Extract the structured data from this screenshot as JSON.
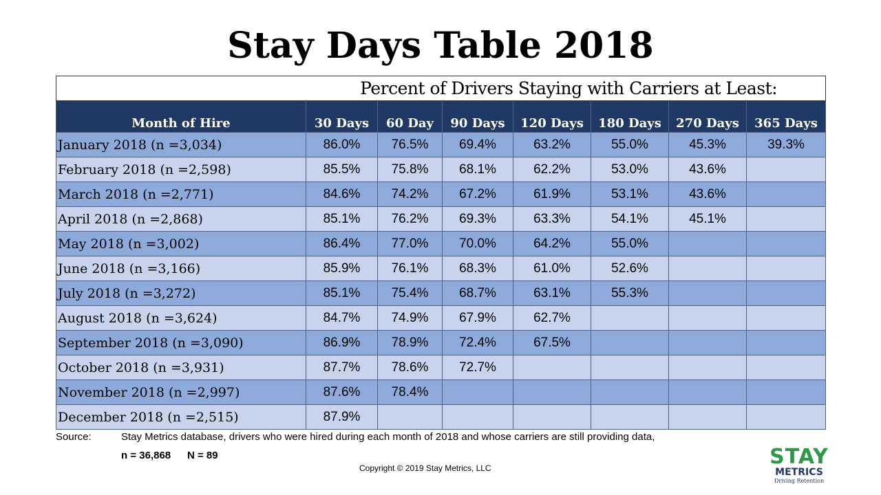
{
  "title": "Stay Days Table 2018",
  "table": {
    "superheader": "Percent of Drivers Staying with Carriers at Least:",
    "headers": [
      "Month of Hire",
      "30 Days",
      "60 Day",
      "90 Days",
      "120 Days",
      "180 Days",
      "270 Days",
      "365 Days"
    ],
    "rows": [
      [
        "January 2018 (n =3,034)",
        "86.0%",
        "76.5%",
        "69.4%",
        "63.2%",
        "55.0%",
        "45.3%",
        "39.3%"
      ],
      [
        "February 2018 (n =2,598)",
        "85.5%",
        "75.8%",
        "68.1%",
        "62.2%",
        "53.0%",
        "43.6%",
        null
      ],
      [
        "March 2018 (n =2,771)",
        "84.6%",
        "74.2%",
        "67.2%",
        "61.9%",
        "53.1%",
        "43.6%",
        null
      ],
      [
        "April 2018 (n =2,868)",
        "85.1%",
        "76.2%",
        "69.3%",
        "63.3%",
        "54.1%",
        "45.1%",
        null
      ],
      [
        "May 2018 (n =3,002)",
        "86.4%",
        "77.0%",
        "70.0%",
        "64.2%",
        "55.0%",
        null,
        null
      ],
      [
        "June 2018 (n =3,166)",
        "85.9%",
        "76.1%",
        "68.3%",
        "61.0%",
        "52.6%",
        null,
        null
      ],
      [
        "July 2018 (n =3,272)",
        "85.1%",
        "75.4%",
        "68.7%",
        "63.1%",
        "55.3%",
        null,
        null
      ],
      [
        "August 2018 (n =3,624)",
        "84.7%",
        "74.9%",
        "67.9%",
        "62.7%",
        null,
        null,
        null
      ],
      [
        "September 2018 (n =3,090)",
        "86.9%",
        "78.9%",
        "72.4%",
        "67.5%",
        null,
        null,
        null
      ],
      [
        "October 2018 (n =3,931)",
        "87.7%",
        "78.6%",
        "72.7%",
        null,
        null,
        null,
        null
      ],
      [
        "November 2018 (n =2,997)",
        "87.6%",
        "78.4%",
        null,
        null,
        null,
        null,
        null
      ],
      [
        "December 2018 (n =2,515)",
        "87.9%",
        null,
        null,
        null,
        null,
        null,
        null
      ]
    ]
  },
  "footer": {
    "source_label": "Source:",
    "source_text": "Stay Metrics database, drivers who were hired during each month of 2018 and whose carriers are still providing data,",
    "n_total": "n = 36,868",
    "n_carriers": "N = 89",
    "copyright": "Copyright © 2019 Stay Metrics, LLC"
  },
  "logo": {
    "top": "STAY",
    "middle": "METRICS",
    "tagline": "Driving Retention"
  }
}
